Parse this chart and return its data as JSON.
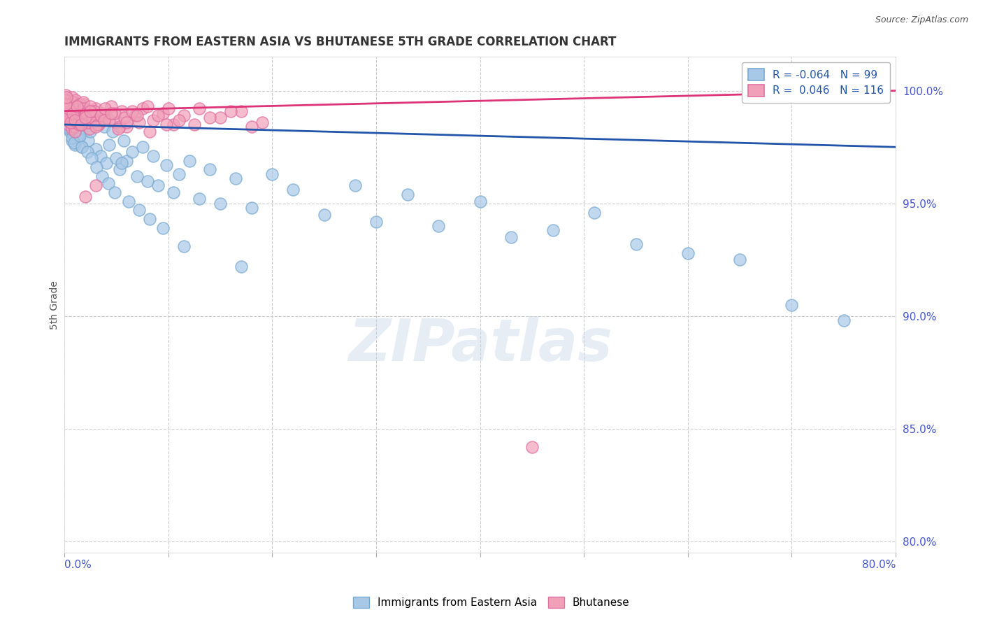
{
  "title": "IMMIGRANTS FROM EASTERN ASIA VS BHUTANESE 5TH GRADE CORRELATION CHART",
  "source": "Source: ZipAtlas.com",
  "ylabel": "5th Grade",
  "right_yticks": [
    80.0,
    85.0,
    90.0,
    95.0,
    100.0
  ],
  "right_ytick_labels": [
    "80.0%",
    "85.0%",
    "90.0%",
    "95.0%",
    "100.0%"
  ],
  "blue_R": -0.064,
  "blue_N": 99,
  "pink_R": 0.046,
  "pink_N": 116,
  "blue_color": "#a8c8e8",
  "pink_color": "#f0a0b8",
  "blue_edge_color": "#7aaad0",
  "pink_edge_color": "#e070a0",
  "blue_line_color": "#2255aa",
  "pink_line_color": "#dd3377",
  "watermark": "ZIPatlas",
  "xmin": 0.0,
  "xmax": 80.0,
  "ymin": 79.5,
  "ymax": 101.5,
  "blue_scatter_x": [
    0.1,
    0.2,
    0.2,
    0.3,
    0.3,
    0.4,
    0.4,
    0.5,
    0.5,
    0.6,
    0.6,
    0.7,
    0.7,
    0.8,
    0.9,
    1.0,
    1.0,
    1.1,
    1.2,
    1.3,
    1.4,
    1.5,
    1.6,
    1.7,
    1.8,
    2.0,
    2.1,
    2.3,
    2.5,
    2.7,
    3.0,
    3.2,
    3.5,
    3.8,
    4.0,
    4.3,
    4.6,
    5.0,
    5.3,
    5.7,
    6.0,
    6.5,
    7.0,
    7.5,
    8.0,
    8.5,
    9.0,
    9.8,
    10.5,
    11.0,
    12.0,
    13.0,
    14.0,
    15.0,
    16.5,
    18.0,
    20.0,
    22.0,
    25.0,
    28.0,
    30.0,
    33.0,
    36.0,
    40.0,
    43.0,
    47.0,
    51.0,
    55.0,
    60.0,
    65.0,
    70.0,
    75.0,
    0.15,
    0.25,
    0.35,
    0.45,
    0.55,
    0.65,
    0.75,
    0.85,
    0.95,
    1.05,
    1.25,
    1.45,
    1.65,
    1.9,
    2.2,
    2.6,
    3.1,
    3.6,
    4.2,
    4.8,
    5.5,
    6.2,
    7.2,
    8.2,
    9.5,
    11.5,
    17.0
  ],
  "blue_scatter_y": [
    98.8,
    99.2,
    98.5,
    99.0,
    98.3,
    98.7,
    99.5,
    98.9,
    98.2,
    99.1,
    98.6,
    97.8,
    99.3,
    98.4,
    98.0,
    99.0,
    97.6,
    98.7,
    99.2,
    98.1,
    97.9,
    98.5,
    98.8,
    97.5,
    98.3,
    99.0,
    98.6,
    97.8,
    98.2,
    98.9,
    97.4,
    98.7,
    97.1,
    98.4,
    96.8,
    97.6,
    98.2,
    97.0,
    96.5,
    97.8,
    96.9,
    97.3,
    96.2,
    97.5,
    96.0,
    97.1,
    95.8,
    96.7,
    95.5,
    96.3,
    96.9,
    95.2,
    96.5,
    95.0,
    96.1,
    94.8,
    96.3,
    95.6,
    94.5,
    95.8,
    94.2,
    95.4,
    94.0,
    95.1,
    93.5,
    93.8,
    94.6,
    93.2,
    92.8,
    92.5,
    90.5,
    89.8,
    99.4,
    98.9,
    99.1,
    98.6,
    98.3,
    99.0,
    97.9,
    98.5,
    97.7,
    98.2,
    99.3,
    98.0,
    97.5,
    98.8,
    97.3,
    97.0,
    96.6,
    96.2,
    95.9,
    95.5,
    96.8,
    95.1,
    94.7,
    94.3,
    93.9,
    93.1,
    92.2
  ],
  "pink_scatter_x": [
    0.05,
    0.1,
    0.15,
    0.2,
    0.25,
    0.3,
    0.35,
    0.4,
    0.45,
    0.5,
    0.55,
    0.6,
    0.65,
    0.7,
    0.75,
    0.8,
    0.85,
    0.9,
    0.95,
    1.0,
    1.1,
    1.2,
    1.3,
    1.4,
    1.5,
    1.6,
    1.7,
    1.8,
    1.9,
    2.0,
    2.2,
    2.4,
    2.6,
    2.8,
    3.0,
    3.3,
    3.6,
    4.0,
    4.5,
    5.0,
    5.5,
    6.0,
    6.8,
    7.5,
    8.5,
    9.5,
    10.5,
    11.5,
    13.0,
    15.0,
    17.0,
    19.0,
    0.08,
    0.18,
    0.28,
    0.38,
    0.48,
    0.58,
    0.68,
    0.78,
    0.88,
    0.98,
    1.08,
    1.18,
    1.28,
    1.38,
    1.48,
    1.58,
    1.68,
    1.78,
    1.88,
    1.98,
    2.1,
    2.3,
    2.5,
    2.7,
    2.9,
    3.2,
    3.5,
    3.9,
    4.3,
    4.8,
    5.3,
    5.8,
    6.5,
    7.2,
    8.0,
    9.0,
    10.0,
    11.0,
    12.5,
    14.0,
    16.0,
    18.0,
    2.0,
    3.0,
    0.2,
    0.4,
    0.6,
    0.8,
    1.0,
    1.2,
    1.6,
    2.0,
    2.5,
    3.0,
    3.8,
    4.5,
    5.2,
    6.0,
    7.0,
    8.2,
    9.8,
    0.12,
    0.22,
    45.0
  ],
  "pink_scatter_y": [
    99.5,
    99.2,
    99.8,
    99.0,
    99.4,
    98.8,
    99.6,
    98.5,
    99.1,
    98.9,
    99.3,
    98.6,
    99.0,
    98.3,
    99.7,
    98.7,
    99.2,
    98.4,
    99.5,
    98.2,
    99.1,
    98.8,
    99.3,
    98.5,
    99.0,
    98.7,
    99.2,
    98.9,
    99.4,
    98.6,
    99.0,
    98.3,
    99.1,
    98.7,
    99.2,
    98.5,
    99.0,
    98.8,
    99.3,
    98.6,
    99.1,
    98.4,
    98.9,
    99.2,
    98.7,
    99.0,
    98.5,
    98.9,
    99.2,
    98.8,
    99.1,
    98.6,
    99.6,
    99.3,
    99.0,
    98.7,
    99.4,
    99.1,
    98.8,
    99.5,
    99.2,
    98.9,
    99.6,
    99.3,
    99.0,
    98.7,
    99.4,
    99.1,
    98.8,
    99.5,
    99.2,
    98.9,
    99.0,
    98.6,
    99.3,
    98.8,
    99.1,
    98.5,
    98.9,
    99.2,
    98.7,
    99.0,
    98.4,
    98.8,
    99.1,
    98.6,
    99.3,
    98.9,
    99.2,
    98.7,
    98.5,
    98.8,
    99.1,
    98.4,
    95.3,
    95.8,
    98.9,
    99.2,
    98.6,
    99.0,
    98.7,
    99.3,
    98.5,
    98.8,
    99.1,
    98.4,
    98.7,
    99.0,
    98.3,
    98.6,
    98.9,
    98.2,
    98.5,
    99.4,
    99.7,
    84.2
  ]
}
